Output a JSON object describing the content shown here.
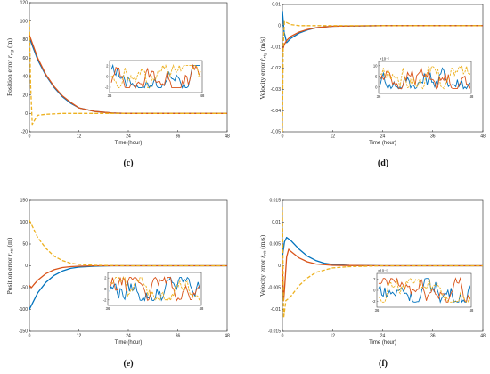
{
  "colors": {
    "blue": "#0072BD",
    "red": "#D95319",
    "yellow": "#EDB120",
    "axis": "#222222",
    "grid": "#dcdcdc"
  },
  "chart_data": [
    {
      "id": "c",
      "caption": "(c)",
      "type": "line",
      "xlabel": "Time (hour)",
      "ylabel": "Position error r_rtg (m)",
      "xlim": [
        0,
        48
      ],
      "ylim": [
        -20,
        120
      ],
      "xticks": [
        "0",
        "12",
        "24",
        "36",
        "48"
      ],
      "yticks": [
        "-20",
        "0",
        "20",
        "40",
        "60",
        "80",
        "100",
        "120"
      ],
      "series": [
        {
          "color": "blue",
          "style": "solid",
          "x": [
            0,
            2,
            4,
            6,
            8,
            10,
            12,
            16,
            20,
            24,
            36,
            48
          ],
          "y": [
            82,
            58,
            41,
            28,
            18,
            11,
            6,
            2,
            0.5,
            0,
            0,
            0
          ]
        },
        {
          "color": "red",
          "style": "solid",
          "x": [
            0,
            2,
            4,
            6,
            8,
            10,
            12,
            16,
            20,
            24,
            36,
            48
          ],
          "y": [
            85,
            60,
            42,
            29,
            19,
            12,
            6,
            2,
            0.5,
            0,
            0,
            0
          ]
        },
        {
          "color": "yellow",
          "style": "dashed",
          "x": [
            0,
            0.3,
            0.7,
            1.2,
            2,
            4,
            8,
            12,
            24,
            36,
            48
          ],
          "y": [
            100,
            30,
            -12,
            -8,
            -2,
            -1,
            0,
            0,
            0,
            0,
            0
          ]
        }
      ],
      "inset": {
        "xticks": [
          "36",
          "48"
        ],
        "yticks": [
          "2",
          "0",
          "-2"
        ],
        "ylim": [
          -3,
          3
        ]
      }
    },
    {
      "id": "d",
      "caption": "(d)",
      "type": "line",
      "xlabel": "Time (hour)",
      "ylabel": "Velocity error ṙ_rtg (m/s)",
      "xlim": [
        0,
        48
      ],
      "ylim": [
        -0.05,
        0.01
      ],
      "xticks": [
        "0",
        "12",
        "24",
        "36",
        "48"
      ],
      "yticks": [
        "0.01",
        "0",
        "-0.01",
        "-0.02",
        "-0.03",
        "-0.04",
        "-0.05"
      ],
      "series": [
        {
          "color": "blue",
          "style": "solid",
          "x": [
            0,
            0.4,
            1,
            2,
            4,
            6,
            8,
            12,
            24,
            48
          ],
          "y": [
            0.007,
            -0.003,
            -0.008,
            -0.006,
            -0.0035,
            -0.002,
            -0.001,
            -0.0003,
            0,
            0
          ]
        },
        {
          "color": "red",
          "style": "solid",
          "x": [
            0,
            0.4,
            1,
            2,
            4,
            6,
            8,
            12,
            24,
            48
          ],
          "y": [
            -0.012,
            -0.009,
            -0.007,
            -0.005,
            -0.003,
            -0.0018,
            -0.001,
            -0.0003,
            0,
            0
          ]
        },
        {
          "color": "yellow",
          "style": "dashed",
          "x": [
            0,
            0.2,
            0.5,
            1,
            2,
            4,
            12,
            48
          ],
          "y": [
            -0.05,
            -0.01,
            0.002,
            0.0015,
            0.0005,
            0,
            0,
            0
          ]
        }
      ],
      "inset": {
        "xticks": [
          "36",
          "48"
        ],
        "yticks": [
          "10",
          "5",
          "0"
        ],
        "ylim": [
          -3,
          12
        ],
        "exponent": "×10⁻⁵"
      }
    },
    {
      "id": "e",
      "caption": "(e)",
      "type": "line",
      "xlabel": "Time (hour)",
      "ylabel": "Position error r_rtt (m)",
      "xlim": [
        0,
        48
      ],
      "ylim": [
        -150,
        150
      ],
      "xticks": [
        "0",
        "12",
        "24",
        "36",
        "48"
      ],
      "yticks": [
        "150",
        "100",
        "50",
        "0",
        "-50",
        "-100",
        "-150"
      ],
      "series": [
        {
          "color": "blue",
          "style": "solid",
          "x": [
            0,
            2,
            4,
            6,
            8,
            10,
            12,
            16,
            20,
            24,
            36,
            48
          ],
          "y": [
            -100,
            -62,
            -38,
            -22,
            -12,
            -6,
            -3,
            -1,
            0,
            0,
            0,
            0
          ]
        },
        {
          "color": "red",
          "style": "solid",
          "x": [
            0,
            0.5,
            1,
            2,
            4,
            6,
            8,
            10,
            12,
            16,
            24,
            48
          ],
          "y": [
            -45,
            -50,
            -44,
            -33,
            -18,
            -9,
            -4,
            -2,
            -1,
            0,
            0,
            0
          ]
        },
        {
          "color": "yellow",
          "style": "dashed",
          "x": [
            0,
            2,
            4,
            6,
            8,
            10,
            12,
            16,
            24,
            48
          ],
          "y": [
            105,
            65,
            40,
            22,
            12,
            6,
            3,
            1,
            0,
            0
          ]
        }
      ],
      "inset": {
        "xticks": [
          "36",
          "48"
        ],
        "yticks": [
          "2",
          "0",
          "-2"
        ],
        "ylim": [
          -3,
          3
        ]
      }
    },
    {
      "id": "f",
      "caption": "(f)",
      "type": "line",
      "xlabel": "Time (hour)",
      "ylabel": "Velocity error ṙ_rtt (m/s)",
      "xlim": [
        0,
        48
      ],
      "ylim": [
        -0.015,
        0.015
      ],
      "xticks": [
        "0",
        "12",
        "24",
        "36",
        "48"
      ],
      "yticks": [
        "0.015",
        "0.01",
        "0.005",
        "0",
        "-0.005",
        "-0.01",
        "-0.015"
      ],
      "series": [
        {
          "color": "blue",
          "style": "solid",
          "x": [
            0,
            0.5,
            1,
            2,
            4,
            6,
            8,
            10,
            12,
            16,
            24,
            48
          ],
          "y": [
            0.002,
            0.0055,
            0.0065,
            0.0058,
            0.0038,
            0.0022,
            0.0012,
            0.0006,
            0.0003,
            0.0001,
            0,
            0
          ]
        },
        {
          "color": "red",
          "style": "solid",
          "x": [
            0,
            0.3,
            0.6,
            1,
            1.5,
            2,
            4,
            6,
            8,
            12,
            24,
            48
          ],
          "y": [
            0,
            -0.008,
            -0.004,
            0.002,
            0.0038,
            0.0033,
            0.0018,
            0.0009,
            0.0004,
            0.0001,
            0,
            0
          ]
        },
        {
          "color": "yellow",
          "style": "dashed",
          "x": [
            0,
            0.3,
            0.8,
            1.5,
            2,
            4,
            6,
            8,
            12,
            16,
            24,
            48
          ],
          "y": [
            0.0135,
            -0.012,
            -0.008,
            -0.0075,
            -0.007,
            -0.0045,
            -0.0028,
            -0.0015,
            -0.0005,
            -0.0002,
            0,
            0
          ]
        }
      ],
      "inset": {
        "xticks": [
          "36",
          "48"
        ],
        "yticks": [
          "2",
          "0",
          "-2"
        ],
        "ylim": [
          -3,
          3
        ],
        "exponent": "×10⁻⁵"
      }
    }
  ]
}
